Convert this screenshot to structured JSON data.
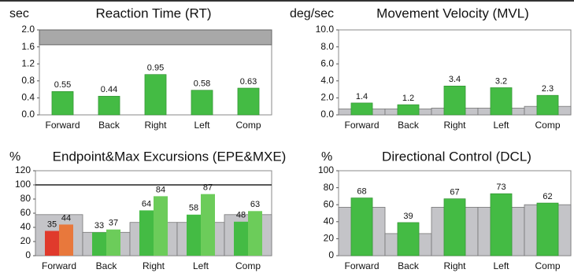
{
  "chart_data": [
    {
      "type": "bar",
      "unit": "sec",
      "title": "Reaction Time (RT)",
      "categories": [
        "Forward",
        "Back",
        "Right",
        "Left",
        "Comp"
      ],
      "values": [
        0.55,
        0.44,
        0.95,
        0.58,
        0.63
      ],
      "color": "#44bb44",
      "ylim": [
        0,
        2.0
      ],
      "yticks": [
        {
          "value": 0,
          "label": "0.0"
        },
        {
          "value": 0.4,
          "label": "0.4"
        },
        {
          "value": 0.8,
          "label": "0.8"
        },
        {
          "value": 1.2,
          "label": "1.2"
        },
        {
          "value": 1.6,
          "label": "1.6"
        },
        {
          "value": 2.0,
          "label": "2.0"
        }
      ],
      "reference_band": [
        1.65,
        2.0
      ]
    },
    {
      "type": "bar",
      "unit": "deg/sec",
      "title": "Movement Velocity (MVL)",
      "categories": [
        "Forward",
        "Back",
        "Right",
        "Left",
        "Comp"
      ],
      "values": [
        1.4,
        1.2,
        3.4,
        3.2,
        2.3
      ],
      "color": "#44bb44",
      "ylim": [
        0,
        10.0
      ],
      "yticks": [
        {
          "value": 0,
          "label": "0.0"
        },
        {
          "value": 2,
          "label": "2.0"
        },
        {
          "value": 4,
          "label": "4.0"
        },
        {
          "value": 6,
          "label": "6.0"
        },
        {
          "value": 8,
          "label": "8.0"
        },
        {
          "value": 10,
          "label": "10.0"
        }
      ],
      "reference_values": [
        0.7,
        0.7,
        0.8,
        0.8,
        1.0
      ]
    },
    {
      "type": "grouped_bar",
      "unit": "%",
      "title": "Endpoint&Max Excursions (EPE&MXE)",
      "categories": [
        "Forward",
        "Back",
        "Right",
        "Left",
        "Comp"
      ],
      "series": [
        {
          "colors": [
            "#e03a2c",
            "#44bb44",
            "#44bb44",
            "#44bb44",
            "#44bb44"
          ],
          "values": [
            35,
            33,
            64,
            58,
            48
          ]
        },
        {
          "colors": [
            "#e8783c",
            "#6ccc5a",
            "#6ccc5a",
            "#6ccc5a",
            "#6ccc5a"
          ],
          "values": [
            44,
            37,
            84,
            87,
            63
          ]
        }
      ],
      "ylim": [
        0,
        120
      ],
      "yticks": [
        0,
        20,
        40,
        60,
        80,
        100,
        120
      ],
      "reference_line": 100,
      "reference_values": [
        58,
        33,
        47,
        47,
        58
      ]
    },
    {
      "type": "bar",
      "unit": "%",
      "title": "Directional Control (DCL)",
      "categories": [
        "Forward",
        "Back",
        "Right",
        "Left",
        "Comp"
      ],
      "values": [
        68,
        39,
        67,
        73,
        62
      ],
      "color": "#44bb44",
      "ylim": [
        0,
        100
      ],
      "yticks": [
        0,
        20,
        40,
        60,
        80,
        100
      ],
      "reference_values": [
        57,
        26,
        57,
        57,
        60
      ]
    }
  ]
}
